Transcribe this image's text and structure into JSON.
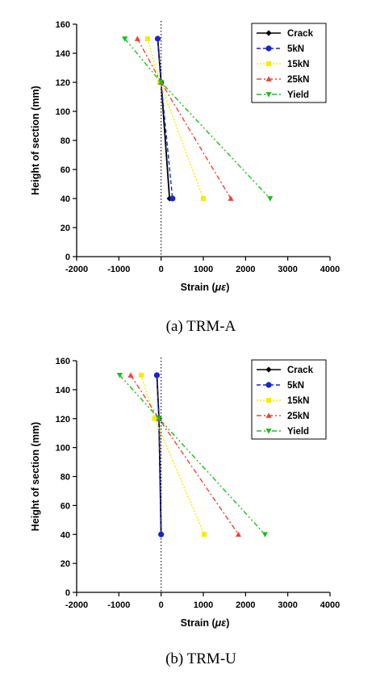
{
  "chart_data": [
    {
      "type": "line",
      "caption": "(a) TRM-A",
      "xlabel": "Strain (με)",
      "ylabel": "Height of section (mm)",
      "xlim": [
        -2000,
        4000
      ],
      "ylim": [
        0,
        160
      ],
      "xticks": [
        "-2000",
        "-1000",
        "0",
        "1000",
        "2000",
        "3000",
        "4000"
      ],
      "yticks": [
        "0",
        "20",
        "40",
        "60",
        "80",
        "100",
        "120",
        "140",
        "160"
      ],
      "reference_line_x": 0,
      "legend_position": "top-right",
      "series": [
        {
          "name": "Crack",
          "color": "#000000",
          "marker": "diamond",
          "dash": "solid",
          "points": [
            [
              -80,
              150
            ],
            [
              0,
              120
            ],
            [
              200,
              40
            ]
          ]
        },
        {
          "name": "5kN",
          "color": "#1a23cc",
          "marker": "circle",
          "dash": "dashed",
          "points": [
            [
              -80,
              150
            ],
            [
              0,
              120
            ],
            [
              270,
              40
            ]
          ]
        },
        {
          "name": "15kN",
          "color": "#f5ec00",
          "marker": "square",
          "dash": "dotted",
          "points": [
            [
              -320,
              150
            ],
            [
              -30,
              120
            ],
            [
              1000,
              40
            ]
          ]
        },
        {
          "name": "25kN",
          "color": "#e6463c",
          "marker": "triangle-up",
          "dash": "dashdot",
          "points": [
            [
              -560,
              150
            ],
            [
              0,
              120
            ],
            [
              1650,
              40
            ]
          ]
        },
        {
          "name": "Yield",
          "color": "#1cbd1c",
          "marker": "triangle-down",
          "dash": "dashdotdot",
          "points": [
            [
              -860,
              150
            ],
            [
              0,
              120
            ],
            [
              2580,
              40
            ]
          ]
        }
      ]
    },
    {
      "type": "line",
      "caption": "(b) TRM-U",
      "xlabel": "Strain (με)",
      "ylabel": "Height of section (mm)",
      "xlim": [
        -2000,
        4000
      ],
      "ylim": [
        0,
        160
      ],
      "xticks": [
        "-2000",
        "-1000",
        "0",
        "1000",
        "2000",
        "3000",
        "4000"
      ],
      "yticks": [
        "0",
        "20",
        "40",
        "60",
        "80",
        "100",
        "120",
        "140",
        "160"
      ],
      "reference_line_x": 0,
      "legend_position": "top-right",
      "series": [
        {
          "name": "Crack",
          "color": "#000000",
          "marker": "diamond",
          "dash": "solid",
          "points": [
            [
              -100,
              150
            ],
            [
              -50,
              120
            ],
            [
              0,
              40
            ]
          ]
        },
        {
          "name": "5kN",
          "color": "#1a23cc",
          "marker": "circle",
          "dash": "dashed",
          "points": [
            [
              -100,
              150
            ],
            [
              -50,
              120
            ],
            [
              0,
              40
            ]
          ]
        },
        {
          "name": "15kN",
          "color": "#f5ec00",
          "marker": "square",
          "dash": "dotted",
          "points": [
            [
              -470,
              150
            ],
            [
              -150,
              120
            ],
            [
              1020,
              40
            ]
          ]
        },
        {
          "name": "25kN",
          "color": "#e6463c",
          "marker": "triangle-up",
          "dash": "dashdot",
          "points": [
            [
              -720,
              150
            ],
            [
              -50,
              120
            ],
            [
              1830,
              40
            ]
          ]
        },
        {
          "name": "Yield",
          "color": "#1cbd1c",
          "marker": "triangle-down",
          "dash": "dashdotdot",
          "points": [
            [
              -980,
              150
            ],
            [
              -50,
              120
            ],
            [
              2460,
              40
            ]
          ]
        }
      ]
    }
  ]
}
